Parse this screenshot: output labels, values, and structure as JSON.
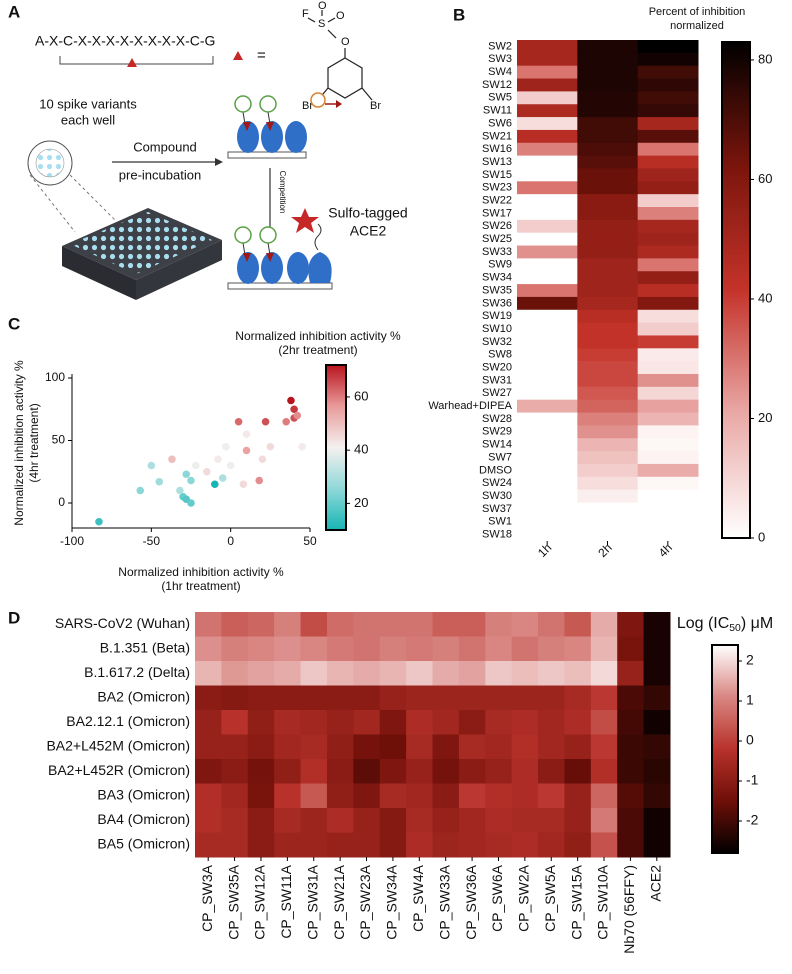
{
  "panel_labels": [
    "A",
    "B",
    "C",
    "D"
  ],
  "diagram": {
    "sequence": "A-X-C-X-X-X-X-X-X-X-X-C-G",
    "equals": "=",
    "atoms": [
      "F",
      "S",
      "O",
      "O",
      "O",
      "Br",
      "Br"
    ],
    "well_text": [
      "10 spike variants",
      "each well"
    ],
    "step1": [
      "Compound",
      "pre-incubation"
    ],
    "step2": "Competition",
    "reagent": [
      "Sulfo-tagged",
      "ACE2"
    ]
  },
  "chart_data": [
    {
      "type": "heatmap",
      "colorbar_title": [
        "Percent of inhibition",
        "normalized"
      ],
      "columns": [
        "1h",
        "2h",
        "4h"
      ],
      "rows": [
        "SW2",
        "SW3",
        "SW4",
        "SW12",
        "SW5",
        "SW11",
        "SW6",
        "SW21",
        "SW16",
        "SW13",
        "SW15",
        "SW23",
        "SW22",
        "SW17",
        "SW26",
        "SW25",
        "SW33",
        "SW9",
        "SW34",
        "SW35",
        "SW36",
        "SW19",
        "SW10",
        "SW32",
        "SW8",
        "SW20",
        "SW31",
        "SW27",
        "Warhead+DIPEA",
        "SW28",
        "SW29",
        "SW14",
        "SW7",
        "DMSO",
        "SW24",
        "SW30",
        "SW37",
        "SW1",
        "SW18"
      ],
      "values": [
        [
          50,
          78,
          83
        ],
        [
          50,
          78,
          80
        ],
        [
          30,
          78,
          72
        ],
        [
          52,
          78,
          75
        ],
        [
          12,
          77,
          72
        ],
        [
          48,
          77,
          74
        ],
        [
          8,
          72,
          50
        ],
        [
          45,
          72,
          68
        ],
        [
          28,
          70,
          30
        ],
        [
          0,
          68,
          45
        ],
        [
          0,
          65,
          52
        ],
        [
          30,
          65,
          55
        ],
        [
          0,
          58,
          12
        ],
        [
          0,
          58,
          28
        ],
        [
          12,
          55,
          50
        ],
        [
          0,
          55,
          52
        ],
        [
          25,
          55,
          48
        ],
        [
          0,
          52,
          30
        ],
        [
          0,
          52,
          55
        ],
        [
          30,
          52,
          45
        ],
        [
          65,
          50,
          60
        ],
        [
          0,
          45,
          8
        ],
        [
          0,
          42,
          12
        ],
        [
          0,
          42,
          40
        ],
        [
          0,
          40,
          5
        ],
        [
          0,
          38,
          6
        ],
        [
          0,
          38,
          25
        ],
        [
          0,
          35,
          10
        ],
        [
          20,
          33,
          22
        ],
        [
          0,
          28,
          18
        ],
        [
          0,
          25,
          3
        ],
        [
          0,
          18,
          2
        ],
        [
          0,
          15,
          3
        ],
        [
          0,
          12,
          20
        ],
        [
          0,
          8,
          2
        ],
        [
          0,
          4,
          0
        ],
        [
          0,
          0,
          0
        ],
        [
          0,
          0,
          0
        ],
        [
          0,
          0,
          0
        ]
      ],
      "zlim": [
        0,
        83
      ],
      "zticks": [
        0,
        20,
        40,
        60,
        80
      ],
      "colorscale": [
        "#ffffff",
        "#e9a9a6",
        "#c4332a",
        "#7a150c",
        "#000000"
      ]
    },
    {
      "type": "scatter",
      "xlabel": [
        "Normalized inhibition activity %",
        "(1hr treatment)"
      ],
      "ylabel": [
        "Normalized inhibition activity %",
        "(4hr treatment)"
      ],
      "colorbar_title": [
        "Normalized inhibition activity %",
        "(2hr treatment)"
      ],
      "x": [
        -83,
        -57,
        -50,
        -45,
        -37,
        -30,
        -32,
        -28,
        -28,
        -25,
        -25,
        -22,
        -15,
        -10,
        -8,
        -5,
        -3,
        5,
        8,
        10,
        10,
        18,
        20,
        22,
        25,
        35,
        38,
        40,
        40,
        42,
        45,
        0
      ],
      "y": [
        -15,
        10,
        30,
        17,
        35,
        5,
        10,
        23,
        3,
        18,
        0,
        30,
        25,
        15,
        35,
        20,
        45,
        65,
        15,
        42,
        55,
        18,
        35,
        65,
        45,
        65,
        82,
        75,
        68,
        70,
        45,
        30
      ],
      "z": [
        15,
        25,
        30,
        28,
        50,
        20,
        30,
        25,
        18,
        25,
        20,
        40,
        45,
        10,
        42,
        30,
        40,
        62,
        45,
        55,
        42,
        58,
        45,
        65,
        45,
        60,
        72,
        68,
        65,
        58,
        42,
        40
      ],
      "xlim": [
        -100,
        50
      ],
      "xticks": [
        -100,
        -50,
        0,
        50
      ],
      "ylim": [
        -20,
        100
      ],
      "yticks": [
        0,
        50,
        100
      ],
      "zlim": [
        10,
        72
      ],
      "zticks": [
        20,
        40,
        60
      ],
      "colorscale": [
        "#18b5b5",
        "#8fd8d8",
        "#f5f0f0",
        "#e99a9a",
        "#b8141e"
      ]
    },
    {
      "type": "heatmap",
      "colorbar_title": [
        "Log (IC",
        "50",
        ") μM"
      ],
      "columns": [
        "CP_SW3A",
        "CP_SW35A",
        "CP_SW12A",
        "CP_SW11A",
        "CP_SW31A",
        "CP_SW21A",
        "CP_SW23A",
        "CP_SW34A",
        "CP_SW4A",
        "CP_SW33A",
        "CP_SW36A",
        "CP_SW6A",
        "CP_SW2A",
        "CP_SW5A",
        "CP_SW15A",
        "CP_SW10A",
        "Nb70 (56FFY)",
        "ACE2"
      ],
      "rows": [
        "SARS-CoV2 (Wuhan)",
        "B.1.351 (Beta)",
        "B.1.617.2 (Delta)",
        "BA2 (Omicron)",
        "BA2.12.1 (Omicron)",
        "BA2+L452M (Omicron)",
        "BA2+L452R (Omicron)",
        "BA3 (Omicron)",
        "BA4 (Omicron)",
        "BA5 (Omicron)"
      ],
      "values": [
        [
          0.8,
          0.5,
          0.6,
          1.0,
          0.2,
          0.7,
          0.8,
          0.8,
          0.8,
          0.5,
          0.5,
          1.0,
          1.1,
          0.8,
          0.4,
          1.5,
          -1.2,
          -2.5
        ],
        [
          1.2,
          1.0,
          1.1,
          1.2,
          1.1,
          0.9,
          0.8,
          1.0,
          0.9,
          1.0,
          0.8,
          1.1,
          0.8,
          1.0,
          1.1,
          1.6,
          -1.3,
          -2.5
        ],
        [
          1.6,
          1.3,
          1.4,
          1.5,
          1.8,
          1.6,
          1.5,
          1.6,
          1.8,
          1.5,
          1.4,
          1.8,
          1.7,
          1.8,
          1.7,
          2.0,
          -0.8,
          -2.5
        ],
        [
          -1.0,
          -1.1,
          -1.0,
          -1.0,
          -1.0,
          -1.0,
          -1.0,
          -0.8,
          -0.7,
          -0.7,
          -0.7,
          -0.7,
          -0.7,
          -0.7,
          -0.5,
          -0.1,
          -1.9,
          -2.2
        ],
        [
          -0.8,
          -0.2,
          -0.9,
          -0.5,
          -0.6,
          -0.8,
          -0.6,
          -1.2,
          -0.4,
          -0.6,
          -1.0,
          -0.5,
          -0.4,
          -0.6,
          -0.4,
          0.2,
          -2.0,
          -2.6
        ],
        [
          -0.8,
          -0.8,
          -1.0,
          -0.6,
          -0.5,
          -0.9,
          -1.4,
          -1.5,
          -0.5,
          -1.2,
          -0.5,
          -0.6,
          -0.3,
          -0.6,
          -0.8,
          -0.1,
          -2.1,
          -2.2
        ],
        [
          -1.2,
          -1.0,
          -1.4,
          -0.9,
          -0.3,
          -1.0,
          -1.7,
          -1.2,
          -0.8,
          -1.4,
          -1.0,
          -0.8,
          -0.4,
          -1.0,
          -1.6,
          -0.3,
          -2.1,
          -2.3
        ],
        [
          -0.3,
          -0.6,
          -1.3,
          -0.2,
          0.4,
          -0.9,
          -1.2,
          -0.5,
          -0.6,
          -1.0,
          -0.1,
          -0.3,
          -0.4,
          -0.1,
          -0.8,
          0.6,
          -1.8,
          -2.2
        ],
        [
          -0.3,
          -0.5,
          -1.0,
          -0.5,
          -0.7,
          -0.4,
          -0.8,
          -1.1,
          -0.5,
          -0.8,
          -0.6,
          -0.4,
          -0.5,
          -0.5,
          -0.8,
          0.9,
          -1.9,
          -2.6
        ],
        [
          -0.5,
          -0.5,
          -1.0,
          -0.7,
          -0.7,
          -0.8,
          -0.8,
          -1.1,
          -0.4,
          -0.7,
          -0.6,
          -0.5,
          -0.4,
          -0.6,
          -0.9,
          0.3,
          -1.9,
          -2.6
        ]
      ],
      "zlim": [
        -2.8,
        2.4
      ],
      "zticks": [
        -2,
        -1,
        0,
        1,
        2
      ],
      "colorscale": [
        "#000000",
        "#6e0f08",
        "#b8322b",
        "#d98682",
        "#ffffff"
      ]
    }
  ]
}
